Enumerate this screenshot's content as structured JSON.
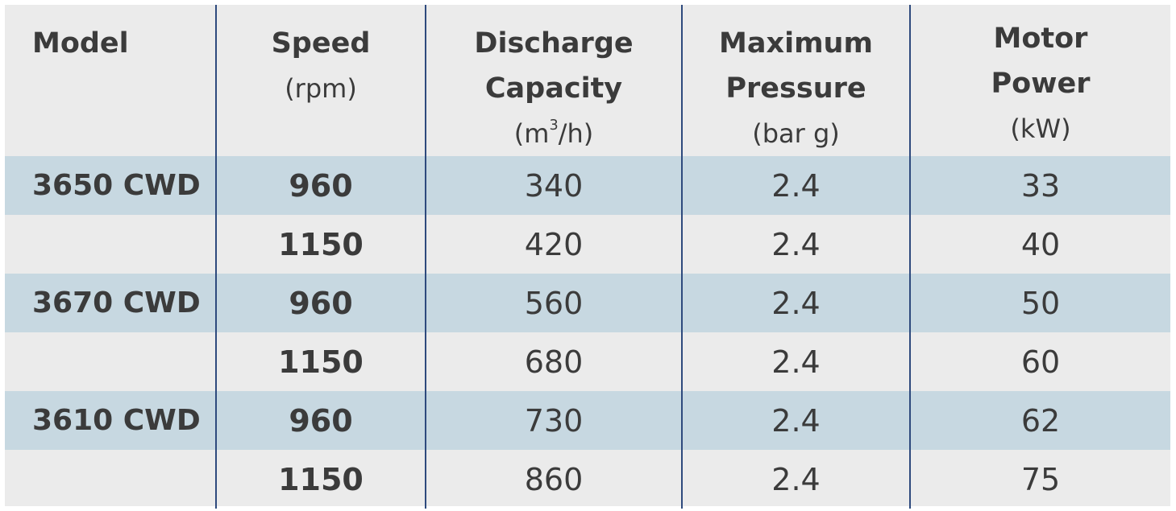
{
  "headers": {
    "model": {
      "main": [
        "Model"
      ],
      "unit": ""
    },
    "speed": {
      "main": [
        "Speed"
      ],
      "unit": "(rpm)"
    },
    "discharge": {
      "main": [
        "Discharge",
        "Capacity"
      ],
      "unit_prefix": "(m",
      "unit_sup": "3",
      "unit_suffix": "/h)"
    },
    "pressure": {
      "main": [
        "Maximum",
        "Pressure"
      ],
      "unit": "(bar g)"
    },
    "power": {
      "main": [
        "Motor",
        "Power"
      ],
      "unit": "(kW)"
    }
  },
  "rows": [
    {
      "model": "3650 CWD",
      "speed": "960",
      "discharge": "340",
      "pressure": "2.4",
      "power": "33",
      "banded": true
    },
    {
      "model": "",
      "speed": "1150",
      "discharge": "420",
      "pressure": "2.4",
      "power": "40",
      "banded": false
    },
    {
      "model": "3670 CWD",
      "speed": "960",
      "discharge": "560",
      "pressure": "2.4",
      "power": "50",
      "banded": true
    },
    {
      "model": "",
      "speed": "1150",
      "discharge": "680",
      "pressure": "2.4",
      "power": "60",
      "banded": false
    },
    {
      "model": "3610 CWD",
      "speed": "960",
      "discharge": "730",
      "pressure": "2.4",
      "power": "62",
      "banded": true
    },
    {
      "model": "",
      "speed": "1150",
      "discharge": "860",
      "pressure": "2.4",
      "power": "75",
      "banded": false
    }
  ],
  "colors": {
    "band": "#c7d8e1",
    "base": "#ebebeb",
    "divider": "#2e4a7d",
    "text": "#3b3b3b"
  }
}
